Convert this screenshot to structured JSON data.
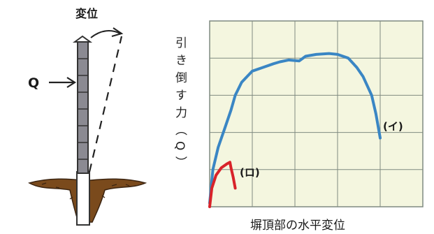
{
  "diagram": {
    "displacement_label": "変位",
    "force_label": "Q"
  },
  "chart": {
    "ylabel": "引き倒す力（Q）",
    "xlabel": "塀頂部の水平変位",
    "curve_i_label": "(イ)",
    "curve_ro_label": "(ロ)",
    "colors": {
      "grid_bg": "#f4f6df",
      "grid_line": "#7f8a80",
      "curve_i": "#3a86c4",
      "curve_ro": "#d8232a"
    }
  },
  "chart_data": {
    "type": "line",
    "xlabel": "塀頂部の水平変位",
    "ylabel": "引き倒す力（Q）",
    "series": [
      {
        "name": "(イ)",
        "x": [
          0,
          0.15,
          0.4,
          0.7,
          1.0,
          1.2,
          1.5,
          2.0,
          2.5,
          3.0,
          3.3,
          3.7,
          4.2,
          4.5,
          5.0,
          5.6,
          6.0,
          6.5,
          6.9,
          7.2,
          7.6,
          7.8,
          8.0
        ],
        "y": [
          0.2,
          2.0,
          3.2,
          4.2,
          5.2,
          6.0,
          6.7,
          7.3,
          7.5,
          7.7,
          7.8,
          7.9,
          7.85,
          8.1,
          8.2,
          8.25,
          8.2,
          8.0,
          7.5,
          7.0,
          6.0,
          5.0,
          3.7
        ]
      },
      {
        "name": "(ロ)",
        "x": [
          0,
          0.1,
          0.3,
          0.55,
          0.8,
          0.95,
          1.0,
          1.1,
          1.2
        ],
        "y": [
          0,
          1.0,
          1.7,
          2.1,
          2.3,
          2.4,
          2.1,
          1.6,
          1.0
        ]
      }
    ]
  }
}
